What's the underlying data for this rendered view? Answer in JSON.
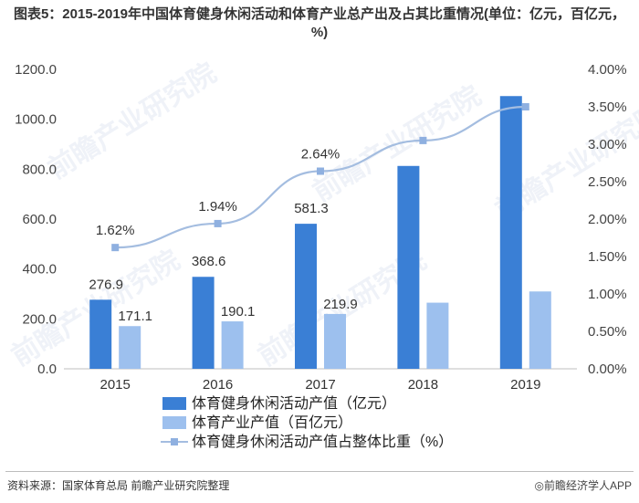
{
  "title": "图表5：2015-2019年中国体育健身休闲活动和体育产业总产出及占其比重情况(单位：亿元，百亿元，%)",
  "footer": {
    "source": "资料来源：国家体育总局 前瞻产业研究院整理",
    "brand": "◎前瞻经济学人APP"
  },
  "watermark": "前瞻产业研究院",
  "colors": {
    "series1": "#3a7fd5",
    "series2": "#9dc0ee",
    "series3": "#a4bde0",
    "line_marker": "#8fb0e0"
  },
  "chart_data": {
    "type": "bar",
    "categories": [
      "2015",
      "2016",
      "2017",
      "2018",
      "2019"
    ],
    "series": [
      {
        "name": "体育健身休闲活动产值（亿元）",
        "type": "bar",
        "axis": "left",
        "values": [
          276.9,
          368.6,
          581.3,
          813,
          1093
        ],
        "labels": [
          "276.9",
          "368.6",
          "581.3",
          "",
          ""
        ]
      },
      {
        "name": "体育产业产值（百亿元）",
        "type": "bar",
        "axis": "left",
        "values": [
          171.1,
          190.1,
          219.9,
          265,
          310
        ],
        "labels": [
          "171.1",
          "190.1",
          "219.9",
          "",
          ""
        ]
      },
      {
        "name": "体育健身休闲活动产值占整体比重（%）",
        "type": "line",
        "axis": "right",
        "values": [
          1.62,
          1.94,
          2.64,
          3.05,
          3.5
        ],
        "labels": [
          "1.62%",
          "1.94%",
          "2.64%",
          "",
          ""
        ]
      }
    ],
    "ylim": [
      0,
      1200
    ],
    "y2lim": [
      0,
      4
    ],
    "yticks": [
      "0.0",
      "200.0",
      "400.0",
      "600.0",
      "800.0",
      "1000.0",
      "1200.0"
    ],
    "y2ticks": [
      "0.00%",
      "0.50%",
      "1.00%",
      "1.50%",
      "2.00%",
      "2.50%",
      "3.00%",
      "3.50%",
      "4.00%"
    ],
    "grid": false,
    "legend_position": "bottom"
  }
}
